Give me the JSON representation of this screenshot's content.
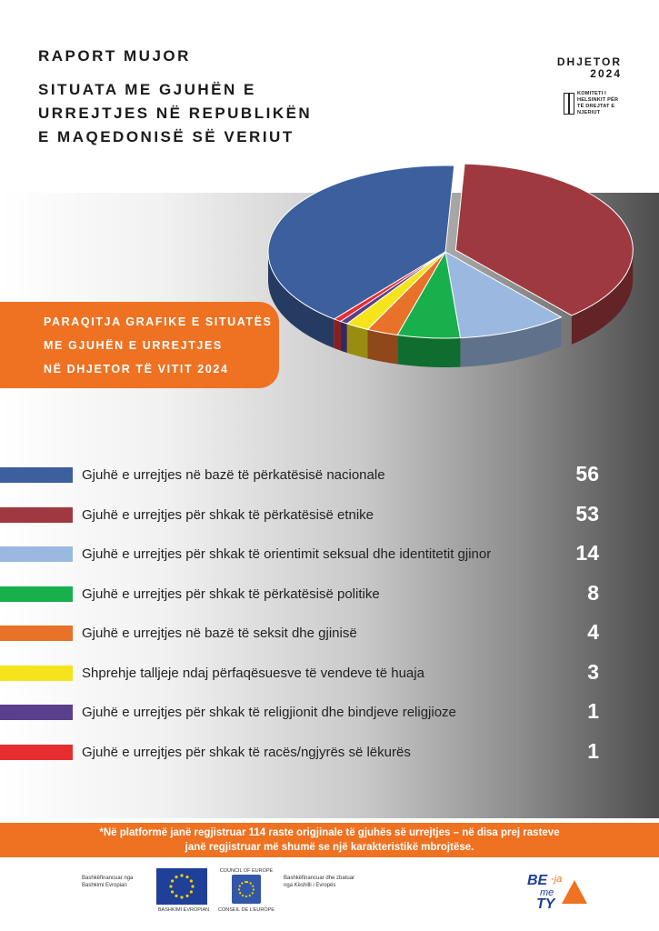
{
  "header": {
    "report_label": "RAPORT MUJOR",
    "title_lines": [
      "SITUATA ME GJUHËN E",
      "URREJTJES NË REPUBLIKËN",
      "E MAQEDONISË SË VERIUT"
    ],
    "month": "DHJETOR",
    "year": "2024",
    "org_lines": [
      "KOMITETI I",
      "HELSINKIT PËR",
      "TË DREJTAT E",
      "NJERIUT"
    ]
  },
  "banner": {
    "lines": [
      "PARAQITJA GRAFIKE E SITUATËS",
      "ME GJUHËN E URREJTJES",
      "NË DHJETOR TË VITIT 2024"
    ]
  },
  "chart_data": {
    "type": "pie",
    "title": "",
    "categories": [
      "Gjuhë e urrejtjes në bazë të përkatësisë nacionale",
      "Gjuhë e urrejtjes për shkak të përkatësisë etnike",
      "Gjuhë e urrejtjes për shkak të orientimit seksual dhe identitetit gjinor",
      "Gjuhë e urrejtjes për shkak të përkatësisë politike",
      "Gjuhë e urrejtjes në bazë të seksit dhe gjinisë",
      "Shprehje talljeje ndaj përfaqësuesve të vendeve të huaja",
      "Gjuhë e urrejtjes për shkak të religjionit dhe bindjeve religjioze",
      "Gjuhë e urrejtjes për shkak të racës/ngjyrës së lëkurës"
    ],
    "values": [
      56,
      53,
      14,
      8,
      4,
      3,
      1,
      1
    ],
    "value_labels": [
      "56",
      "53",
      "14",
      "8",
      "4",
      "3",
      "1",
      "1"
    ],
    "colors": [
      "#3c5f9e",
      "#9e3a3f",
      "#9bb8e0",
      "#18b04c",
      "#e8722a",
      "#f5e41c",
      "#5a3f8c",
      "#e62e30"
    ],
    "legend": "bottom"
  },
  "footnote": {
    "lines": [
      "*Në platformë janë regjistruar 114 raste origjinale të gjuhës së urrejtjes – në disa prej rasteve",
      "janë regjistruar më shumë se një karakteristikë mbrojtëse."
    ]
  },
  "partners": {
    "eu_cofunded_lines": [
      "Bashkëfinancuar nga",
      "Bashkimi Evropian"
    ],
    "eu_caption": "BASHKIMI EVROPIAN",
    "coe_top": "COUNCIL OF EUROPE",
    "coe_caption": "CONSEIL DE L'EUROPE",
    "coe_cofunded_lines": [
      "Bashkëfinancuar dhe zbatuar",
      "nga Këshilli i Evropës"
    ],
    "campaign_parts": [
      "BE",
      "-ja",
      "me",
      "TY"
    ]
  }
}
